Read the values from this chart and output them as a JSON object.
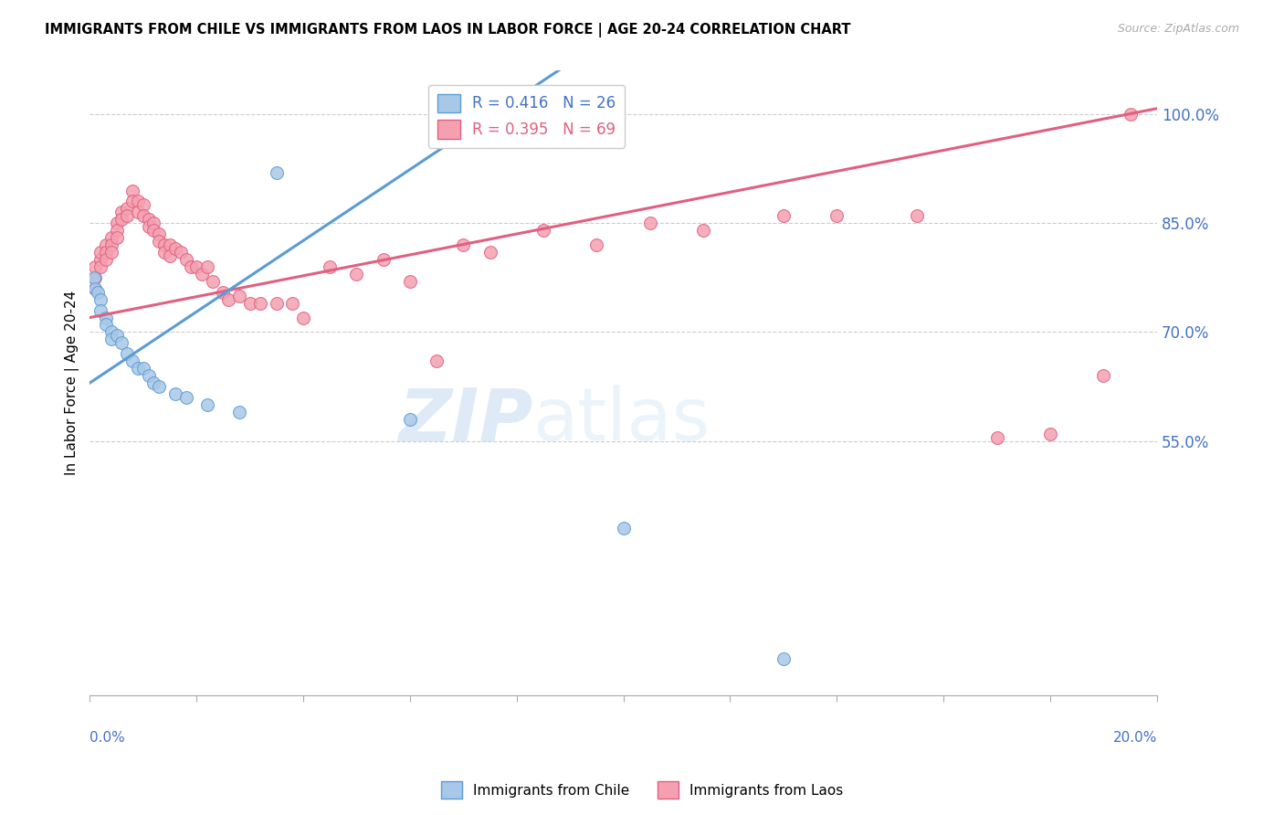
{
  "title": "IMMIGRANTS FROM CHILE VS IMMIGRANTS FROM LAOS IN LABOR FORCE | AGE 20-24 CORRELATION CHART",
  "source": "Source: ZipAtlas.com",
  "ylabel": "In Labor Force | Age 20-24",
  "right_yticks": [
    0.55,
    0.7,
    0.85,
    1.0
  ],
  "right_yticklabels": [
    "55.0%",
    "70.0%",
    "85.0%",
    "100.0%"
  ],
  "legend_chile": "R = 0.416   N = 26",
  "legend_laos": "R = 0.395   N = 69",
  "chile_color": "#a8c8e8",
  "laos_color": "#f4a0b0",
  "chile_edge_color": "#5b9bd5",
  "laos_edge_color": "#e06080",
  "chile_line_color": "#5b9bd5",
  "laos_line_color": "#e06080",
  "xmin": 0.0,
  "xmax": 0.2,
  "ymin": 0.2,
  "ymax": 1.06,
  "chile_x": [
    0.0008,
    0.001,
    0.0015,
    0.002,
    0.002,
    0.003,
    0.003,
    0.004,
    0.004,
    0.005,
    0.006,
    0.007,
    0.008,
    0.009,
    0.01,
    0.011,
    0.012,
    0.013,
    0.016,
    0.018,
    0.022,
    0.028,
    0.035,
    0.06,
    0.1,
    0.13
  ],
  "chile_y": [
    0.775,
    0.76,
    0.755,
    0.745,
    0.73,
    0.72,
    0.71,
    0.7,
    0.69,
    0.695,
    0.685,
    0.67,
    0.66,
    0.65,
    0.65,
    0.64,
    0.63,
    0.625,
    0.615,
    0.61,
    0.6,
    0.59,
    0.92,
    0.58,
    0.43,
    0.25
  ],
  "laos_x": [
    0.001,
    0.001,
    0.001,
    0.002,
    0.002,
    0.002,
    0.003,
    0.003,
    0.003,
    0.004,
    0.004,
    0.004,
    0.005,
    0.005,
    0.005,
    0.006,
    0.006,
    0.007,
    0.007,
    0.008,
    0.008,
    0.009,
    0.009,
    0.01,
    0.01,
    0.011,
    0.011,
    0.012,
    0.012,
    0.013,
    0.013,
    0.014,
    0.014,
    0.015,
    0.015,
    0.016,
    0.017,
    0.018,
    0.019,
    0.02,
    0.021,
    0.022,
    0.023,
    0.025,
    0.026,
    0.028,
    0.03,
    0.032,
    0.035,
    0.038,
    0.04,
    0.045,
    0.05,
    0.055,
    0.06,
    0.065,
    0.07,
    0.075,
    0.085,
    0.095,
    0.105,
    0.115,
    0.13,
    0.14,
    0.155,
    0.17,
    0.18,
    0.19,
    0.195
  ],
  "laos_y": [
    0.76,
    0.775,
    0.79,
    0.8,
    0.81,
    0.79,
    0.82,
    0.81,
    0.8,
    0.83,
    0.82,
    0.81,
    0.85,
    0.84,
    0.83,
    0.865,
    0.855,
    0.87,
    0.86,
    0.895,
    0.88,
    0.88,
    0.865,
    0.875,
    0.86,
    0.855,
    0.845,
    0.85,
    0.84,
    0.835,
    0.825,
    0.82,
    0.81,
    0.82,
    0.805,
    0.815,
    0.81,
    0.8,
    0.79,
    0.79,
    0.78,
    0.79,
    0.77,
    0.755,
    0.745,
    0.75,
    0.74,
    0.74,
    0.74,
    0.74,
    0.72,
    0.79,
    0.78,
    0.8,
    0.77,
    0.66,
    0.82,
    0.81,
    0.84,
    0.82,
    0.85,
    0.84,
    0.86,
    0.86,
    0.86,
    0.555,
    0.56,
    0.64,
    1.0
  ]
}
